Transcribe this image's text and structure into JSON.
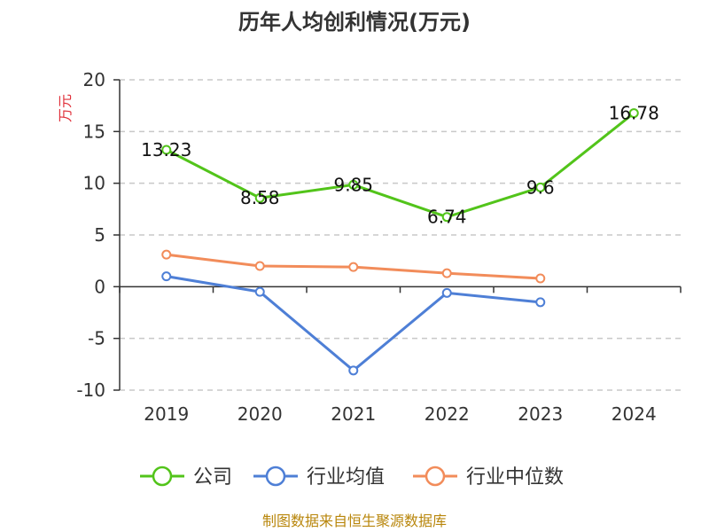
{
  "chart_data": {
    "type": "line",
    "title": "历年人均创利情况(万元)",
    "ylabel": "万元",
    "xlabel": "",
    "categories": [
      "2019",
      "2020",
      "2021",
      "2022",
      "2023",
      "2024"
    ],
    "ylim": [
      -10,
      20
    ],
    "yticks": [
      -10,
      -5,
      0,
      5,
      10,
      15,
      20
    ],
    "grid": true,
    "legend_position": "bottom",
    "series": [
      {
        "name": "公司",
        "color": "#52c41a",
        "values": [
          13.23,
          8.58,
          9.85,
          6.74,
          9.6,
          16.78
        ],
        "labels": [
          "13.23",
          "8.58",
          "9.85",
          "6.74",
          "9.6",
          "16.78"
        ]
      },
      {
        "name": "行业均值",
        "color": "#4e7fd6",
        "values": [
          1.0,
          -0.5,
          -8.1,
          -0.6,
          -1.5,
          null
        ]
      },
      {
        "name": "行业中位数",
        "color": "#f28c5a",
        "values": [
          3.1,
          2.0,
          1.9,
          1.3,
          0.8,
          null
        ]
      }
    ],
    "source": "制图数据来自恒生聚源数据库"
  }
}
